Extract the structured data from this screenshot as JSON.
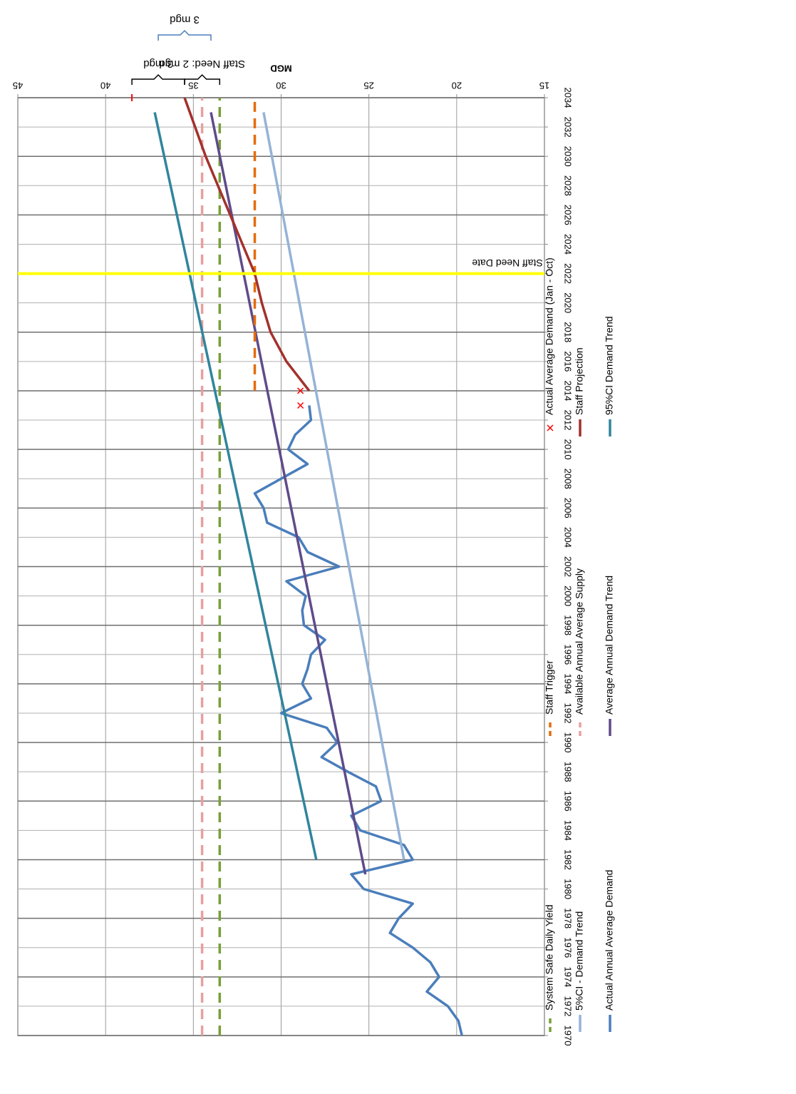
{
  "chart_data": {
    "type": "line",
    "ylabel": "MGD",
    "ylim": [
      15,
      45
    ],
    "yticks": [
      15,
      20,
      25,
      30,
      35,
      40,
      45
    ],
    "xlim": [
      1970,
      2034
    ],
    "xticks": [
      1970,
      1972,
      1974,
      1976,
      1978,
      1980,
      1982,
      1984,
      1986,
      1988,
      1990,
      1992,
      1994,
      1996,
      1998,
      2000,
      2002,
      2004,
      2006,
      2008,
      2010,
      2012,
      2014,
      2016,
      2018,
      2020,
      2022,
      2024,
      2026,
      2028,
      2030,
      2032,
      2034
    ],
    "grid": true,
    "orientation": "rotated-180",
    "series": [
      {
        "name": "Actual Annual Average Demand",
        "style": "line",
        "color": "#4A7EBB",
        "dash": "solid",
        "points": [
          [
            1970,
            19.7
          ],
          [
            1971,
            19.9
          ],
          [
            1972,
            20.5
          ],
          [
            1973,
            21.7
          ],
          [
            1974,
            21.0
          ],
          [
            1975,
            21.5
          ],
          [
            1976,
            22.5
          ],
          [
            1977,
            23.8
          ],
          [
            1978,
            23.3
          ],
          [
            1979,
            22.5
          ],
          [
            1980,
            25.3
          ],
          [
            1981,
            26.0
          ],
          [
            1982,
            22.5
          ],
          [
            1983,
            23.0
          ],
          [
            1984,
            25.5
          ],
          [
            1985,
            26.0
          ],
          [
            1986,
            24.3
          ],
          [
            1987,
            24.6
          ],
          [
            1988,
            26.2
          ],
          [
            1989,
            27.7
          ],
          [
            1990,
            26.8
          ],
          [
            1991,
            27.4
          ],
          [
            1992,
            30.0
          ],
          [
            1993,
            28.3
          ],
          [
            1994,
            28.8
          ],
          [
            1995,
            28.5
          ],
          [
            1996,
            28.3
          ],
          [
            1997,
            27.5
          ],
          [
            1998,
            28.7
          ],
          [
            1999,
            28.8
          ],
          [
            2000,
            28.6
          ],
          [
            2001,
            29.7
          ],
          [
            2002,
            26.7
          ],
          [
            2003,
            28.5
          ],
          [
            2004,
            29.0
          ],
          [
            2005,
            30.8
          ],
          [
            2006,
            31.0
          ],
          [
            2007,
            31.5
          ],
          [
            2008,
            30.0
          ],
          [
            2009,
            28.5
          ],
          [
            2010,
            29.6
          ],
          [
            2011,
            29.2
          ],
          [
            2012,
            28.3
          ],
          [
            2013,
            28.4
          ]
        ]
      },
      {
        "name": "5%CI - Demand Trend",
        "style": "line",
        "color": "#95B3D7",
        "dash": "solid",
        "points": [
          [
            1982,
            23.0
          ],
          [
            2033,
            31.0
          ]
        ]
      },
      {
        "name": "System Safe Daily Yield",
        "style": "line",
        "color": "#77A037",
        "dash": "dashed",
        "points": [
          [
            1970,
            33.5
          ],
          [
            2034,
            33.5
          ]
        ]
      },
      {
        "name": "Average Annual Demand Trend",
        "style": "line",
        "color": "#5F4B8B",
        "dash": "solid",
        "points": [
          [
            1981,
            25.2
          ],
          [
            2033,
            34.0
          ]
        ]
      },
      {
        "name": "Available Annual Average Supply",
        "style": "line",
        "color": "#E6A0A0",
        "dash": "dashed",
        "points": [
          [
            1970,
            34.5
          ],
          [
            2034,
            34.5
          ]
        ]
      },
      {
        "name": "Staff Trigger",
        "style": "line",
        "color": "#E46C0A",
        "dash": "dashed",
        "points": [
          [
            2014,
            31.5
          ],
          [
            2034,
            31.5
          ]
        ]
      },
      {
        "name": "95%CI Demand Trend",
        "style": "line",
        "color": "#31859C",
        "dash": "solid",
        "points": [
          [
            1982,
            28.0
          ],
          [
            2033,
            37.2
          ]
        ]
      },
      {
        "name": "Staff Projection",
        "style": "line",
        "color": "#A3312C",
        "dash": "solid",
        "points": [
          [
            2014,
            28.4
          ],
          [
            2016,
            29.7
          ],
          [
            2018,
            30.6
          ],
          [
            2020,
            31.1
          ],
          [
            2022,
            31.5
          ],
          [
            2024,
            32.2
          ],
          [
            2026,
            32.9
          ],
          [
            2028,
            33.6
          ],
          [
            2030,
            34.3
          ],
          [
            2032,
            34.9
          ],
          [
            2033,
            35.2
          ],
          [
            2034,
            35.5
          ]
        ]
      },
      {
        "name": "Actual Average Demand (Jan - Oct)",
        "style": "markers",
        "marker": "x",
        "color": "#FF0000",
        "points": [
          [
            2013,
            28.9
          ],
          [
            2014,
            28.9
          ]
        ]
      }
    ],
    "vertical_line": {
      "x": 2022,
      "color": "#FFFF00",
      "label": "Staff Need Date"
    },
    "extra_markers": [
      {
        "x": 2034,
        "y": 38.5,
        "color": "#FF0000"
      }
    ],
    "annotations": [
      {
        "text": "Staff Need: 2 mgd",
        "from": 33.5,
        "to": 35.5
      },
      {
        "text": "3 mgd",
        "from": 35.5,
        "to": 38.5
      },
      {
        "text": "3 mgd",
        "from": 34.0,
        "to": 37.0,
        "color": "#4A7EBB"
      }
    ],
    "legend_position": "bottom"
  }
}
